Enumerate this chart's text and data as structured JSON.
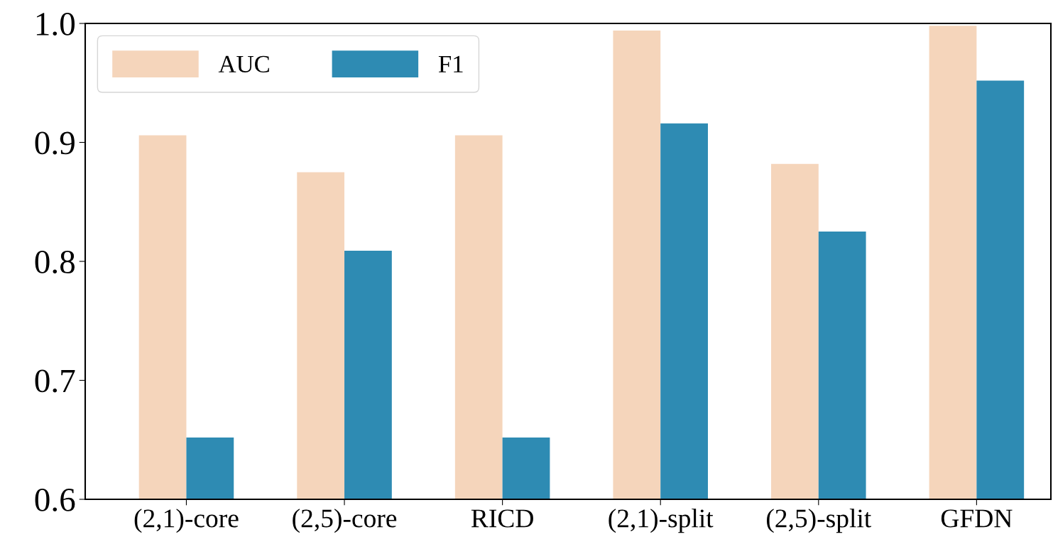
{
  "chart_data": {
    "type": "bar",
    "categories": [
      "(2,1)-core",
      "(2,5)-core",
      "RICD",
      "(2,1)-split",
      "(2,5)-split",
      "GFDN"
    ],
    "series": [
      {
        "name": "AUC",
        "color": "#f5d5bb",
        "values": [
          0.906,
          0.875,
          0.906,
          0.994,
          0.882,
          0.998
        ]
      },
      {
        "name": "F1",
        "color": "#2e8bb3",
        "values": [
          0.652,
          0.809,
          0.652,
          0.916,
          0.825,
          0.952
        ]
      }
    ],
    "ylim": [
      0.6,
      1.0
    ],
    "yticks": [
      0.6,
      0.7,
      0.8,
      0.9,
      {
        "value": 1.0,
        "label": "1.0"
      }
    ],
    "grid": false,
    "legend": "top left"
  }
}
